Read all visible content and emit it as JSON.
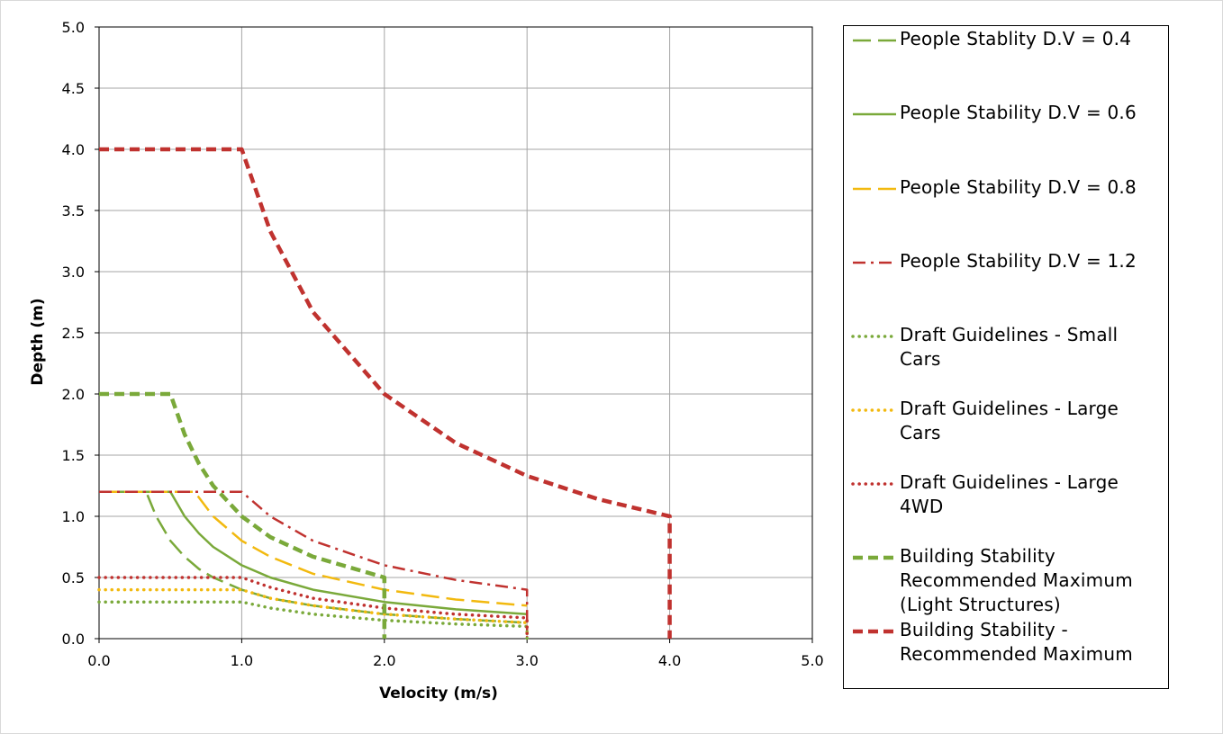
{
  "chart_data": {
    "type": "line",
    "xlabel": "Velocity (m/s)",
    "ylabel": "Depth (m)",
    "xlim": [
      0,
      5
    ],
    "ylim": [
      0,
      5
    ],
    "x_ticks": [
      "0.0",
      "1.0",
      "2.0",
      "3.0",
      "4.0",
      "5.0"
    ],
    "y_ticks": [
      "0.0",
      "0.5",
      "1.0",
      "1.5",
      "2.0",
      "2.5",
      "3.0",
      "3.5",
      "4.0",
      "4.5",
      "5.0"
    ],
    "grid": true,
    "legend_position": "right",
    "series": [
      {
        "name": "People Stablity D.V = 0.4",
        "color": "#7aa93a",
        "style": "dashed",
        "x": [
          0,
          0.33,
          0.4,
          0.5,
          0.6,
          0.7,
          0.8,
          1.0,
          1.2,
          1.5,
          2.0,
          2.5,
          3.0
        ],
        "y": [
          1.2,
          1.2,
          1.0,
          0.8,
          0.67,
          0.57,
          0.5,
          0.4,
          0.33,
          0.27,
          0.2,
          0.16,
          0.13
        ]
      },
      {
        "name": "People Stability D.V = 0.6",
        "color": "#7aa93a",
        "style": "solid",
        "x": [
          0,
          0.5,
          0.6,
          0.7,
          0.8,
          1.0,
          1.2,
          1.5,
          2.0,
          2.5,
          3.0
        ],
        "y": [
          1.2,
          1.2,
          1.0,
          0.86,
          0.75,
          0.6,
          0.5,
          0.4,
          0.3,
          0.24,
          0.2
        ]
      },
      {
        "name": "People Stability D.V = 0.8",
        "color": "#f2b90f",
        "style": "dashed",
        "x": [
          0,
          0.67,
          0.8,
          1.0,
          1.2,
          1.5,
          2.0,
          2.5,
          3.0
        ],
        "y": [
          1.2,
          1.2,
          1.0,
          0.8,
          0.67,
          0.53,
          0.4,
          0.32,
          0.27
        ]
      },
      {
        "name": "People Stability D.V = 1.2",
        "color": "#c0322f",
        "style": "dashdot",
        "x": [
          0,
          1.0,
          1.2,
          1.5,
          2.0,
          2.5,
          3.0,
          3.0
        ],
        "y": [
          1.2,
          1.2,
          1.0,
          0.8,
          0.6,
          0.48,
          0.4,
          0.0
        ]
      },
      {
        "name": "Draft Guidelines - Small Cars",
        "color": "#7aa93a",
        "style": "dotted",
        "x": [
          0,
          1.0,
          1.2,
          1.5,
          2.0,
          2.5,
          3.0,
          3.0
        ],
        "y": [
          0.3,
          0.3,
          0.25,
          0.2,
          0.15,
          0.12,
          0.1,
          0.0
        ]
      },
      {
        "name": "Draft Guidelines - Large Cars",
        "color": "#f2b90f",
        "style": "dotted",
        "x": [
          0,
          1.0,
          1.2,
          1.5,
          2.0,
          2.5,
          3.0,
          3.0
        ],
        "y": [
          0.4,
          0.4,
          0.33,
          0.27,
          0.2,
          0.16,
          0.13,
          0.0
        ]
      },
      {
        "name": "Draft Guidelines - Large 4WD",
        "color": "#c0322f",
        "style": "dotted",
        "x": [
          0,
          1.0,
          1.2,
          1.5,
          2.0,
          2.5,
          3.0,
          3.0
        ],
        "y": [
          0.5,
          0.5,
          0.42,
          0.33,
          0.25,
          0.2,
          0.17,
          0.0
        ]
      },
      {
        "name": "Building Stability Recommended Maximum (Light Structures)",
        "color": "#7aa93a",
        "style": "thickdashed",
        "x": [
          0,
          0.5,
          0.6,
          0.7,
          0.8,
          1.0,
          1.2,
          1.5,
          2.0,
          2.0
        ],
        "y": [
          2.0,
          2.0,
          1.67,
          1.43,
          1.25,
          1.0,
          0.83,
          0.67,
          0.5,
          0.0
        ]
      },
      {
        "name": "Building Stability - Recommended Maximum",
        "color": "#c0322f",
        "style": "thickdashed",
        "x": [
          0,
          1.0,
          1.2,
          1.5,
          2.0,
          2.5,
          3.0,
          3.5,
          4.0,
          4.0
        ],
        "y": [
          4.0,
          4.0,
          3.33,
          2.67,
          2.0,
          1.6,
          1.33,
          1.14,
          1.0,
          0.0
        ]
      }
    ]
  }
}
